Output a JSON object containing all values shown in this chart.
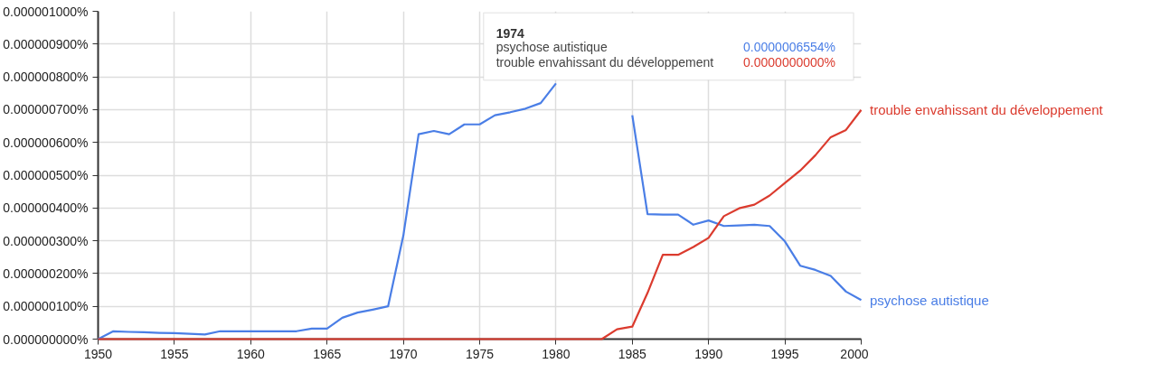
{
  "chart_data": {
    "type": "line",
    "x": [
      1950,
      1951,
      1952,
      1953,
      1954,
      1955,
      1956,
      1957,
      1958,
      1959,
      1960,
      1961,
      1962,
      1963,
      1964,
      1965,
      1966,
      1967,
      1968,
      1969,
      1970,
      1971,
      1972,
      1973,
      1974,
      1975,
      1976,
      1977,
      1978,
      1979,
      1980,
      1981,
      1982,
      1983,
      1984,
      1985,
      1986,
      1987,
      1988,
      1989,
      1990,
      1991,
      1992,
      1993,
      1994,
      1995,
      1996,
      1997,
      1998,
      1999,
      2000
    ],
    "series": [
      {
        "name": "psychose autistique",
        "color": "#4a7ee6",
        "values": [
          0,
          2.4e-08,
          2.2e-08,
          2.1e-08,
          1.9e-08,
          1.8e-08,
          1.6e-08,
          1.4e-08,
          2.4e-08,
          2.4e-08,
          2.4e-08,
          2.4e-08,
          2.4e-08,
          2.4e-08,
          3.2e-08,
          3.2e-08,
          6.5e-08,
          8.1e-08,
          9e-08,
          1e-07,
          3.16e-07,
          6.25e-07,
          6.35e-07,
          6.25e-07,
          6.55e-07,
          6.55e-07,
          6.83e-07,
          6.92e-07,
          7.03e-07,
          7.2e-07,
          7.8e-07,
          null,
          null,
          null,
          null,
          6.83e-07,
          3.81e-07,
          3.8e-07,
          3.8e-07,
          3.49e-07,
          3.62e-07,
          3.45e-07,
          3.47e-07,
          3.49e-07,
          3.45e-07,
          2.98e-07,
          2.24e-07,
          2.11e-07,
          1.93e-07,
          1.45e-07,
          1.19e-07
        ]
      },
      {
        "name": "trouble envahissant du développement",
        "color": "#db3b2e",
        "values": [
          0,
          0,
          0,
          0,
          0,
          0,
          0,
          0,
          0,
          0,
          0,
          0,
          0,
          0,
          0,
          0,
          0,
          0,
          0,
          0,
          0,
          0,
          0,
          0,
          0,
          0,
          0,
          0,
          0,
          0,
          0,
          0,
          0,
          0,
          3e-08,
          3.8e-08,
          1.41e-07,
          2.57e-07,
          2.57e-07,
          2.81e-07,
          3.09e-07,
          3.75e-07,
          3.99e-07,
          4.1e-07,
          4.38e-07,
          4.76e-07,
          5.14e-07,
          5.61e-07,
          6.16e-07,
          6.38e-07,
          6.99e-07
        ]
      }
    ],
    "xlim": [
      1950,
      2000
    ],
    "xticks": [
      1950,
      1955,
      1960,
      1965,
      1970,
      1975,
      1980,
      1985,
      1990,
      1995,
      2000
    ],
    "ylim": [
      0,
      1e-06
    ],
    "yticks": [
      {
        "value": 0,
        "label": "0.000000000%"
      },
      {
        "value": 1e-07,
        "label": "0.000000100%"
      },
      {
        "value": 2e-07,
        "label": "0.000000200%"
      },
      {
        "value": 3e-07,
        "label": "0.000000300%"
      },
      {
        "value": 4e-07,
        "label": "0.000000400%"
      },
      {
        "value": 5e-07,
        "label": "0.000000500%"
      },
      {
        "value": 6e-07,
        "label": "0.000000600%"
      },
      {
        "value": 7e-07,
        "label": "0.000000700%"
      },
      {
        "value": 8e-07,
        "label": "0.000000800%"
      },
      {
        "value": 9e-07,
        "label": "0.000000900%"
      },
      {
        "value": 1e-06,
        "label": "0.000001000%"
      }
    ],
    "annotations": [
      "1974",
      "psychose autistique",
      "0.0000006554%",
      "trouble envahissant du développement",
      "0.0000000000%"
    ],
    "grid": true,
    "marker": "none",
    "line_style": "solid"
  }
}
